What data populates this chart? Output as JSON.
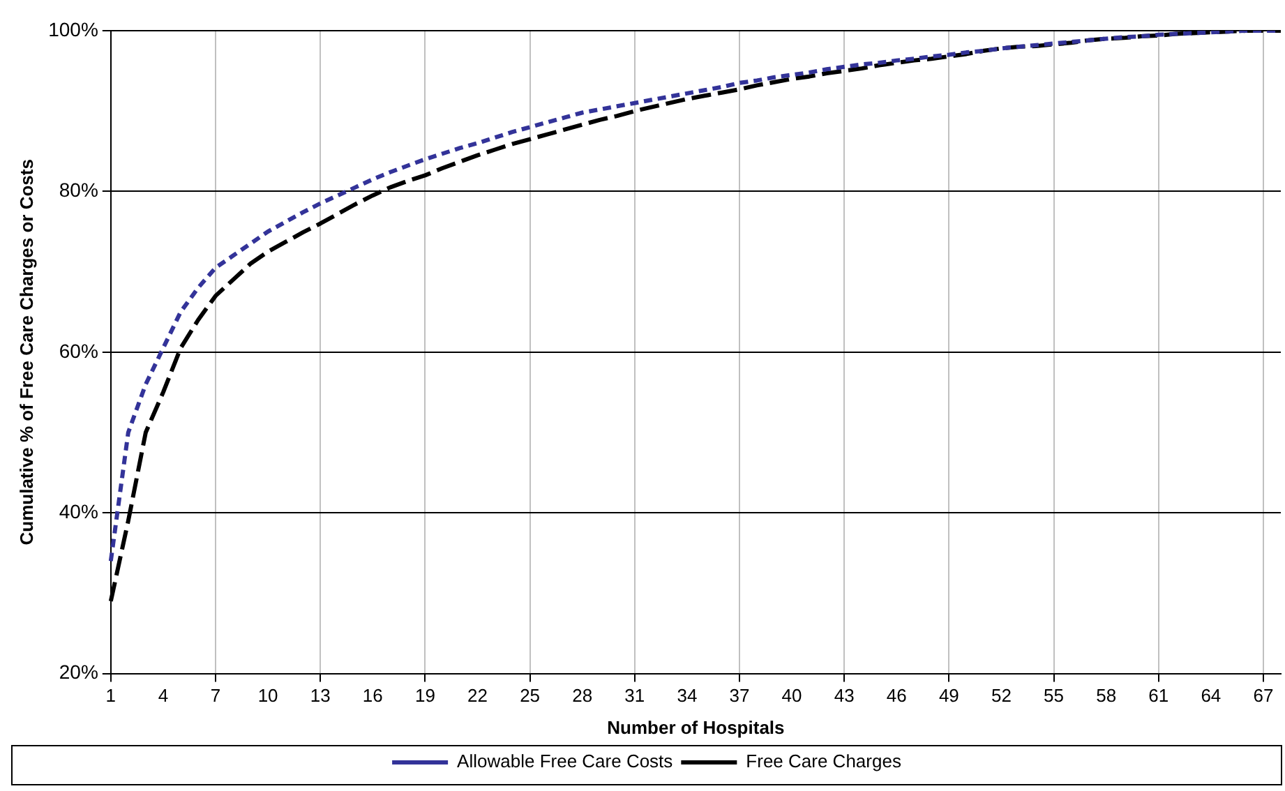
{
  "chart_data": {
    "type": "line",
    "xlabel": "Number of Hospitals",
    "ylabel": "Cumulative % of Free Care Charges or Costs",
    "categories": [
      "1",
      null,
      null,
      "4",
      null,
      null,
      "7",
      null,
      null,
      "10",
      null,
      null,
      "13",
      null,
      null,
      "16",
      null,
      null,
      "19",
      null,
      null,
      "22",
      null,
      null,
      "25",
      null,
      null,
      "28",
      null,
      null,
      "31",
      null,
      null,
      "34",
      null,
      null,
      "37",
      null,
      null,
      "40",
      null,
      null,
      "43",
      null,
      null,
      "46",
      null,
      null,
      "49",
      null,
      null,
      "52",
      null,
      null,
      "55",
      null,
      null,
      "58",
      null,
      null,
      "61",
      null,
      null,
      "64",
      null,
      null,
      "67",
      null
    ],
    "series": [
      {
        "name": "Allowable Free Care Costs",
        "color": "#333399",
        "line_style": "dotted",
        "values": [
          34,
          50,
          56,
          60.5,
          65,
          68,
          70.5,
          72,
          73.5,
          75,
          76.2,
          77.4,
          78.5,
          79.5,
          80.5,
          81.5,
          82.4,
          83.2,
          84,
          84.7,
          85.4,
          86,
          86.7,
          87.4,
          88,
          88.6,
          89.2,
          89.8,
          90.2,
          90.6,
          91,
          91.4,
          91.8,
          92.2,
          92.6,
          93,
          93.5,
          93.8,
          94.2,
          94.5,
          94.8,
          95.2,
          95.5,
          95.8,
          96,
          96.3,
          96.5,
          96.8,
          97,
          97.3,
          97.5,
          97.8,
          98,
          98.2,
          98.4,
          98.6,
          98.8,
          99,
          99.2,
          99.3,
          99.5,
          99.6,
          99.7,
          99.8,
          99.9,
          100,
          100,
          100
        ]
      },
      {
        "name": "Free Care Charges",
        "color": "#000000",
        "line_style": "dashed",
        "values": [
          29,
          39,
          50,
          55,
          60.5,
          64,
          67,
          69,
          71,
          72.5,
          73.7,
          74.9,
          76,
          77.2,
          78.4,
          79.5,
          80.5,
          81.3,
          82,
          82.9,
          83.7,
          84.5,
          85.2,
          85.9,
          86.5,
          87.1,
          87.7,
          88.3,
          88.9,
          89.4,
          90,
          90.5,
          91,
          91.5,
          91.9,
          92.3,
          92.7,
          93.2,
          93.6,
          94,
          94.3,
          94.7,
          95,
          95.3,
          95.7,
          96,
          96.3,
          96.5,
          96.8,
          97.1,
          97.5,
          97.8,
          98,
          98.1,
          98.3,
          98.5,
          98.8,
          99,
          99.1,
          99.3,
          99.4,
          99.6,
          99.7,
          99.8,
          99.9,
          100,
          100,
          100
        ]
      }
    ],
    "ylim": [
      20,
      100
    ],
    "yticks": [
      {
        "value": 20,
        "label": "20%"
      },
      {
        "value": 40,
        "label": "40%"
      },
      {
        "value": 60,
        "label": "60%"
      },
      {
        "value": 80,
        "label": "80%"
      },
      {
        "value": 100,
        "label": "100%"
      }
    ],
    "grid": true,
    "legend": "bottom",
    "marker": "none"
  }
}
